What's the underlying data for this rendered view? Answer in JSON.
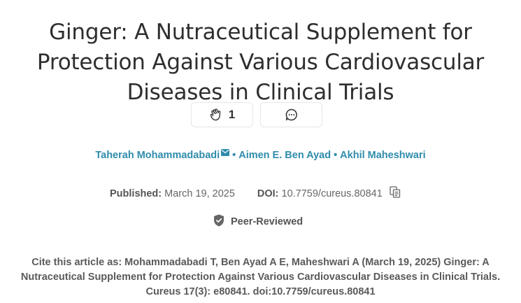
{
  "article": {
    "title": "Ginger: A Nutraceutical Supplement for Protection Against Various Cardiovascular Diseases in Clinical Trials"
  },
  "actions": {
    "clap_count": "1",
    "clap_icon": "clap-icon",
    "comment_icon": "comment-icon"
  },
  "authors": [
    {
      "name": "Taherah Mohammadabadi",
      "has_email": true
    },
    {
      "name": "Aimen E. Ben Ayad"
    },
    {
      "name": "Akhil Maheshwari"
    }
  ],
  "author_separator": "•",
  "meta": {
    "published_label": "Published:",
    "published_value": "March 19, 2025",
    "doi_label": "DOI:",
    "doi_value": "10.7759/cureus.80841"
  },
  "peer_review": {
    "label": "Peer-Reviewed"
  },
  "citation": {
    "text": "Cite this article as: Mohammadabadi T, Ben Ayad A E, Maheshwari A (March 19, 2025) Ginger: A Nutraceutical Supplement for Protection Against Various Cardiovascular Diseases in Clinical Trials. Cureus 17(3): e80841. doi:10.7759/cureus.80841"
  },
  "colors": {
    "accent": "#2f8cab",
    "title": "#2e2e2e",
    "meta": "#555555"
  }
}
